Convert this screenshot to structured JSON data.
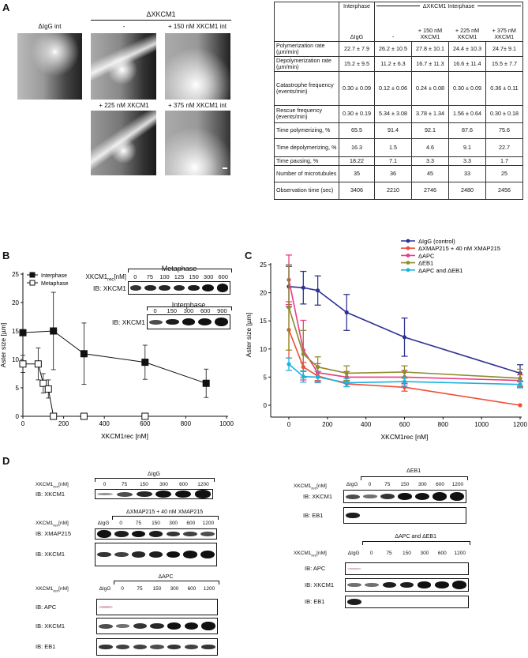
{
  "panel_labels": {
    "a": "A",
    "b": "B",
    "c": "C",
    "d": "D"
  },
  "panel_a": {
    "group_title": "ΔXKCM1",
    "images": [
      {
        "label": "ΔIgG int"
      },
      {
        "label": "-"
      },
      {
        "label": "+ 150 nM XKCM1 int"
      },
      {
        "label": "+ 225 nM XKCM1"
      },
      {
        "label": "+ 375 nM XKCM1 int"
      }
    ]
  },
  "table": {
    "header": {
      "interphase": "Interphase",
      "group": "ΔXKCM1 Interphase",
      "cols": [
        "ΔIgG",
        "-",
        "+ 150 nM XKCM1",
        "+ 225 nM XKCM1",
        "+ 375 nM XKCM1"
      ]
    },
    "rows": [
      {
        "label": "Polymerization rate (µm/min)",
        "values": [
          "22.7 ± 7.9",
          "26.2 ± 10.5",
          "27.8 ± 10.1",
          "24.4 ± 10.3",
          "24.7± 9.1"
        ]
      },
      {
        "label": "Depolymerization rate (µm/min)",
        "values": [
          "15.2 ± 9.5",
          "11.2 ± 6.3",
          "16.7 ± 11.3",
          "16.6 ± 11.4",
          "15.5 ± 7.7"
        ]
      },
      {
        "label": "Catastrophe frequency (events/min)",
        "values": [
          "0.30 ± 0.09",
          "0.12 ± 0.06",
          "0.24 ± 0.08",
          "0.30 ± 0.09",
          "0.36 ± 0.11"
        ]
      },
      {
        "label": "Rescue frequency (events/min)",
        "values": [
          "0.30 ± 0.19",
          "5.34 ± 3.08",
          "3.78 ± 1.34",
          "1.56 ± 0.64",
          "0.30 ± 0.18"
        ]
      },
      {
        "label": "Time polymerizing, %",
        "values": [
          "65.5",
          "91.4",
          "92.1",
          "87.6",
          "75.6"
        ]
      },
      {
        "label": "Time depolymerizing, %",
        "values": [
          "16.3",
          "1.5",
          "4.6",
          "9.1",
          "22.7"
        ]
      },
      {
        "label": "Time pausing, %",
        "values": [
          "18.22",
          "7.1",
          "3.3",
          "3.3",
          "1.7"
        ]
      },
      {
        "label": "Number of microtubules",
        "values": [
          "35",
          "36",
          "45",
          "33",
          "25"
        ]
      },
      {
        "label": "Observation time (sec)",
        "values": [
          "3406",
          "2210",
          "2746",
          "2480",
          "2456"
        ]
      }
    ]
  },
  "chart_data": [
    {
      "type": "line",
      "panel": "B",
      "xlabel": "XKCM1rec [nM]",
      "ylabel": "Aster size [µm]",
      "xlim": [
        0,
        1000
      ],
      "ylim": [
        0,
        25
      ],
      "xticks": [
        "0",
        "200",
        "400",
        "600",
        "800",
        "1000"
      ],
      "yticks": [
        "0",
        "5",
        "10",
        "15",
        "20",
        "25"
      ],
      "legend_position": "top-left",
      "series": [
        {
          "name": "Interphase",
          "marker": "filled-square",
          "color": "#111111",
          "x": [
            0,
            150,
            300,
            600,
            900
          ],
          "y": [
            14.7,
            15.0,
            11.0,
            9.5,
            5.8
          ],
          "err": [
            0,
            6.8,
            5.4,
            3.0,
            2.5
          ]
        },
        {
          "name": "Metaphase",
          "marker": "open-square",
          "color": "#111111",
          "x": [
            0,
            75,
            100,
            125,
            150,
            300,
            600
          ],
          "y": [
            9.2,
            9.2,
            5.8,
            4.8,
            0,
            0,
            0
          ],
          "err": [
            1.5,
            2.8,
            1.7,
            1.6,
            0,
            0,
            0
          ]
        }
      ]
    },
    {
      "type": "line",
      "panel": "C",
      "xlabel": "XKCM1rec [nM]",
      "ylabel": "Aster size [µm]",
      "xlim": [
        0,
        1200
      ],
      "ylim": [
        0,
        25
      ],
      "xticks": [
        "0",
        "200",
        "400",
        "600",
        "800",
        "1000",
        "1200"
      ],
      "yticks": [
        "0",
        "5",
        "10",
        "15",
        "20",
        "25"
      ],
      "legend_position": "top-right",
      "x": [
        0,
        75,
        150,
        300,
        600,
        1200
      ],
      "series": [
        {
          "name": "ΔIgG (control)",
          "color": "#2e3192",
          "y": [
            21.1,
            20.9,
            20.4,
            16.5,
            12.1,
            5.7
          ],
          "err": [
            3.6,
            2.9,
            2.6,
            3.2,
            3.4,
            1.5
          ]
        },
        {
          "name": "ΔXMAP215 + 40 nM XMAP215",
          "color": "#f04e37",
          "y": [
            13.4,
            6.8,
            5.2,
            3.8,
            3.2,
            0
          ],
          "err": [
            5.0,
            0.8,
            0.8,
            0.5,
            0.7,
            0
          ]
        },
        {
          "name": "ΔAPC",
          "color": "#ec3a85",
          "y": [
            22.3,
            9.8,
            5.8,
            5.0,
            5.0,
            4.4
          ],
          "err": [
            4.4,
            5.3,
            1.6,
            1.0,
            1.2,
            1.0
          ]
        },
        {
          "name": "ΔEB1",
          "color": "#8c8c2e",
          "y": [
            17.4,
            9.1,
            6.8,
            5.7,
            5.9,
            4.8
          ],
          "err": [
            7.6,
            4.2,
            1.8,
            1.3,
            1.1,
            1.6
          ]
        },
        {
          "name": "ΔAPC and ΔEB1",
          "color": "#1ab3e0",
          "y": [
            7.3,
            5.1,
            5.0,
            4.0,
            4.2,
            3.7
          ],
          "err": [
            1.1,
            1.0,
            1.0,
            0.7,
            0.8,
            0.6
          ]
        }
      ]
    }
  ],
  "blots": [
    {
      "id": "b-metaphase",
      "title": "Metaphase",
      "conc_label": "XKCM1",
      "conc_sub": "rec",
      "conc_unit": "[nM]",
      "lanes": [
        "0",
        "75",
        "100",
        "125",
        "150",
        "300",
        "600"
      ],
      "bracket_start": 0,
      "rows": [
        {
          "label": "IB: XKCM1",
          "bands": [
            0.6,
            0.65,
            0.65,
            0.65,
            0.7,
            0.85,
            1
          ]
        }
      ]
    },
    {
      "id": "b-interphase",
      "title": "Interphase",
      "lanes": [
        "0",
        "150",
        "300",
        "600",
        "900"
      ],
      "bracket_start": 0,
      "rows": [
        {
          "label": "IB: XKCM1",
          "bands": [
            0.5,
            0.7,
            0.8,
            0.85,
            1
          ]
        }
      ]
    },
    {
      "id": "d-igg",
      "title": "ΔIgG",
      "conc_label": "XKCM1",
      "conc_sub": "rec",
      "conc_unit": "[nM]",
      "lanes": [
        "0",
        "75",
        "150",
        "300",
        "600",
        "1200"
      ],
      "bracket_start": 0,
      "rows": [
        {
          "label": "IB: XKCM1",
          "bands": [
            0.2,
            0.5,
            0.65,
            0.85,
            0.9,
            0.95
          ]
        }
      ]
    },
    {
      "id": "d-xmap",
      "title": "ΔXMAP215 + 40 nM XMAP215",
      "conc_label": "XKCM1",
      "conc_sub": "rec",
      "conc_unit": "[nM]",
      "lanes": [
        "ΔIgG",
        "0",
        "75",
        "150",
        "300",
        "600",
        "1200"
      ],
      "bracket_start": 1,
      "rows": [
        {
          "label": "IB: XMAP215",
          "bands": [
            1,
            0.7,
            0.75,
            0.7,
            0.6,
            0.55,
            0.5
          ]
        },
        {
          "label": "IB: XKCM1",
          "bands": [
            0.6,
            0.55,
            0.65,
            0.7,
            0.75,
            0.85,
            1
          ]
        }
      ]
    },
    {
      "id": "d-apc",
      "title": "ΔAPC",
      "conc_label": "XKCM1",
      "conc_sub": "rec",
      "conc_unit": "[nM]",
      "lanes": [
        "ΔIgG",
        "0",
        "75",
        "150",
        "300",
        "600",
        "1200"
      ],
      "bracket_start": 1,
      "rows": [
        {
          "label": "IB: APC",
          "bands": [
            0.15,
            0,
            0,
            0,
            0,
            0,
            0
          ]
        },
        {
          "label": "IB: XKCM1",
          "bands": [
            0.5,
            0.35,
            0.6,
            0.65,
            0.75,
            0.9,
            1
          ]
        },
        {
          "label": "IB: EB1",
          "bands": [
            0.6,
            0.55,
            0.55,
            0.5,
            0.6,
            0.55,
            0.6
          ]
        }
      ]
    },
    {
      "id": "d-eb1",
      "title": "ΔEB1",
      "conc_label": "XKCM1",
      "conc_sub": "rec",
      "conc_unit": "[nM]",
      "lanes": [
        "ΔIgG",
        "0",
        "75",
        "150",
        "300",
        "600",
        "1200"
      ],
      "bracket_start": 1,
      "rows": [
        {
          "label": "IB: XKCM1",
          "bands": [
            0.5,
            0.35,
            0.6,
            0.75,
            0.85,
            0.95,
            1
          ]
        },
        {
          "label": "IB: EB1",
          "bands": [
            0.7,
            0,
            0,
            0,
            0,
            0,
            0
          ]
        }
      ]
    },
    {
      "id": "d-apc-eb1",
      "title": "ΔAPC and ΔEB1",
      "conc_label": "XKCM1",
      "conc_sub": "rec",
      "conc_unit": "[nM]",
      "lanes": [
        "ΔIgG",
        "0",
        "75",
        "150",
        "300",
        "600",
        "1200"
      ],
      "bracket_start": 1,
      "rows": [
        {
          "label": "IB: APC",
          "bands": [
            0.15,
            0,
            0,
            0,
            0,
            0,
            0
          ]
        },
        {
          "label": "IB: XKCM1",
          "bands": [
            0.35,
            0.35,
            0.7,
            0.7,
            0.75,
            0.8,
            0.95
          ]
        },
        {
          "label": "IB: EB1",
          "bands": [
            0.7,
            0,
            0,
            0,
            0,
            0,
            0
          ]
        }
      ]
    }
  ]
}
